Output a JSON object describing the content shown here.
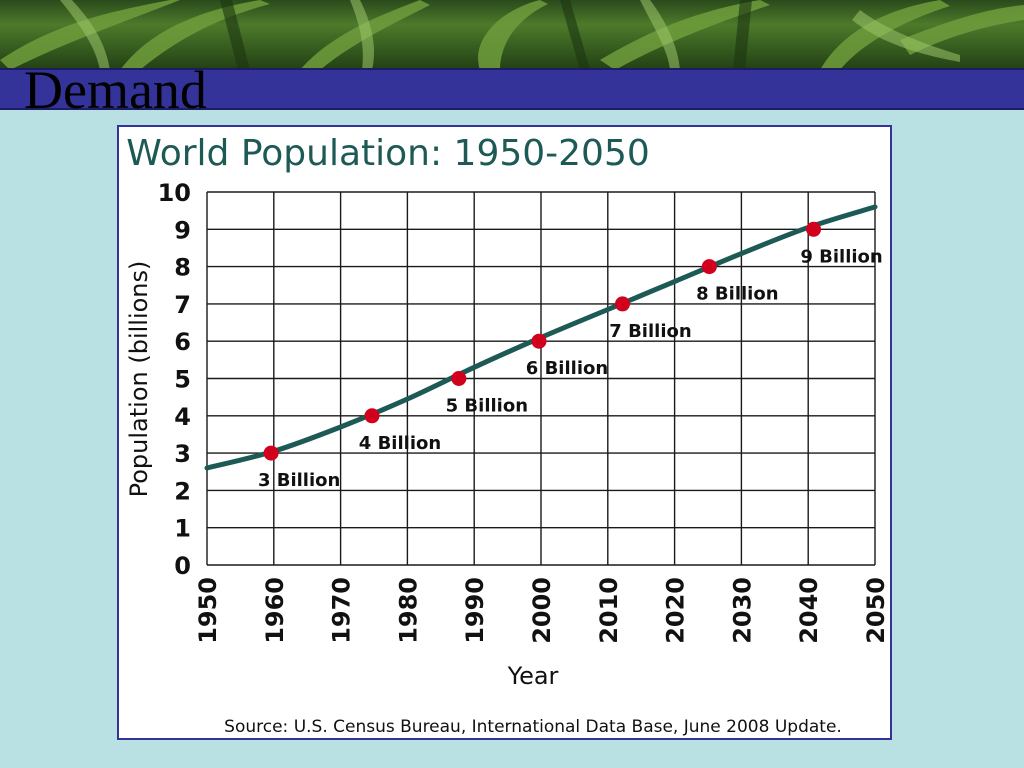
{
  "slide": {
    "title": "Demand"
  },
  "chart_data": {
    "type": "line",
    "title": "World Population: 1950-2050",
    "xlabel": "Year",
    "ylabel": "Population (billions)",
    "xlim": [
      1950,
      2050
    ],
    "ylim": [
      0,
      10
    ],
    "x_ticks": [
      1950,
      1960,
      1970,
      1980,
      1990,
      2000,
      2010,
      2020,
      2030,
      2040,
      2050
    ],
    "y_ticks": [
      0,
      1,
      2,
      3,
      4,
      5,
      6,
      7,
      8,
      9,
      10
    ],
    "grid": true,
    "colors": {
      "line": "#1e5a55",
      "marker": "#d1001c",
      "grid": "#1a1a1a"
    },
    "series": [
      {
        "x": [
          1950,
          1960,
          1970,
          1980,
          1990,
          2000,
          2010,
          2020,
          2030,
          2040,
          2050
        ],
        "values": [
          2.6,
          3.05,
          3.7,
          4.45,
          5.3,
          6.1,
          6.85,
          7.6,
          8.35,
          9.05,
          9.6
        ]
      }
    ],
    "annotations": [
      {
        "x": 1959.6,
        "y": 3.0,
        "label": "3 Billion"
      },
      {
        "x": 1974.7,
        "y": 4.0,
        "label": "4 Billion"
      },
      {
        "x": 1987.7,
        "y": 5.0,
        "label": "5 Billion"
      },
      {
        "x": 1999.7,
        "y": 6.0,
        "label": "6 Billion"
      },
      {
        "x": 2012.2,
        "y": 7.0,
        "label": "7 Billion"
      },
      {
        "x": 2025.2,
        "y": 8.0,
        "label": "8 Billion"
      },
      {
        "x": 2040.8,
        "y": 9.0,
        "label": "9 Billion"
      }
    ],
    "source": "Source: U.S. Census Bureau, International Data Base, June 2008 Update."
  }
}
